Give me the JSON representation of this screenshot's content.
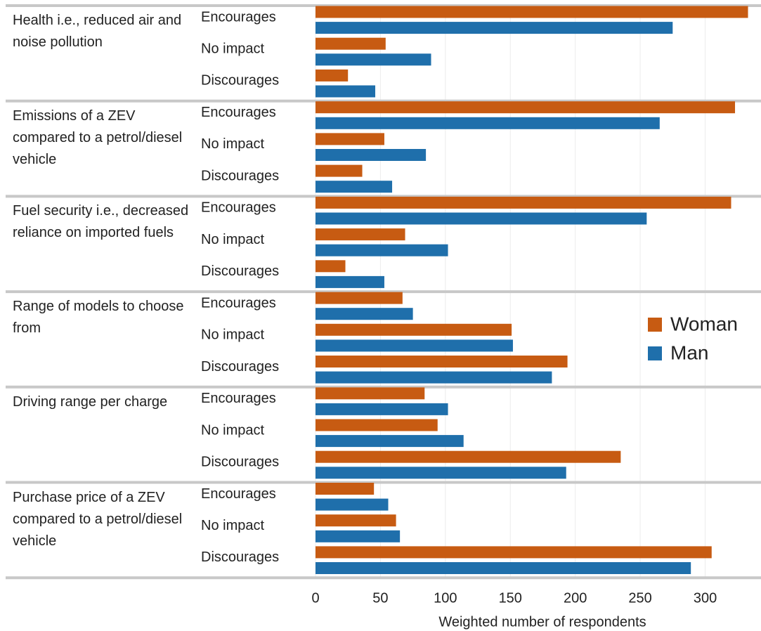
{
  "chart_data": {
    "type": "bar",
    "orientation": "horizontal",
    "xlabel": "Weighted number of respondents",
    "groups": [
      "Health i.e., reduced air and noise pollution",
      "Emissions of a ZEV compared to a petrol/diesel vehicle",
      "Fuel security i.e., decreased reliance on imported fuels",
      "Range of models to choose from",
      "Driving range per charge",
      "Purchase price of a ZEV compared to a petrol/diesel vehicle"
    ],
    "categories": [
      "Encourages",
      "No impact",
      "Discourages",
      "Encourages",
      "No impact",
      "Discourages",
      "Encourages",
      "No impact",
      "Discourages",
      "Encourages",
      "No impact",
      "Discourages",
      "Encourages",
      "No impact",
      "Discourages",
      "Encourages",
      "No impact",
      "Discourages"
    ],
    "series": [
      {
        "name": "Woman",
        "color": "#c75b12",
        "values": [
          333,
          54,
          25,
          323,
          53,
          36,
          320,
          69,
          23,
          67,
          151,
          194,
          84,
          94,
          235,
          45,
          62,
          305
        ]
      },
      {
        "name": "Man",
        "color": "#1f6fab",
        "values": [
          275,
          89,
          46,
          265,
          85,
          59,
          255,
          102,
          53,
          75,
          152,
          182,
          102,
          114,
          193,
          56,
          65,
          289
        ]
      }
    ],
    "xlim": [
      0,
      343
    ],
    "xticks": [
      0,
      50,
      100,
      150,
      200,
      250,
      300
    ],
    "grid": true,
    "legend": "right"
  }
}
